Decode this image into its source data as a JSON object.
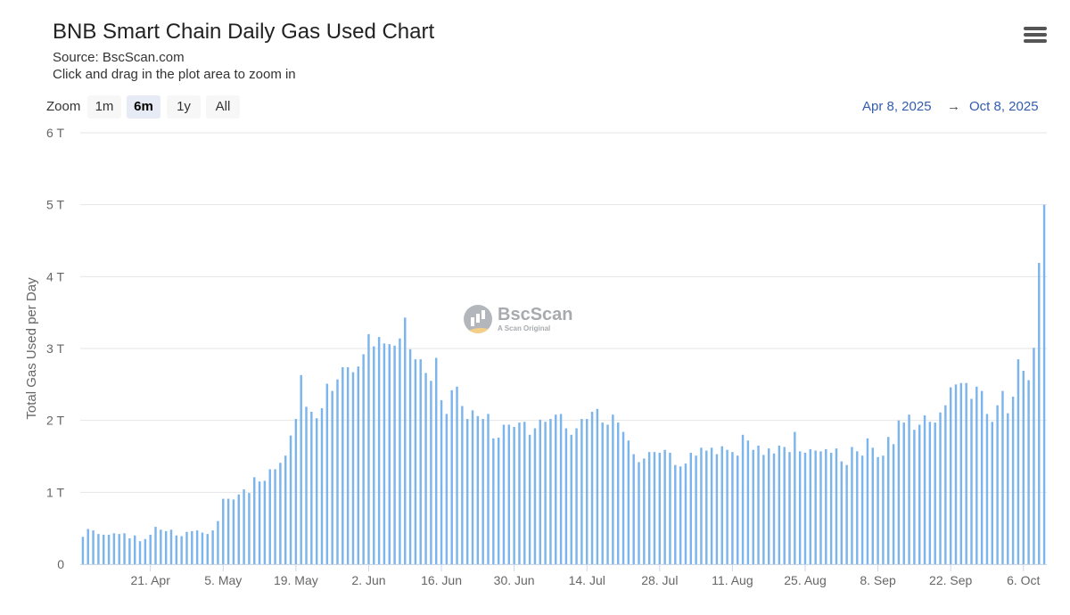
{
  "header": {
    "title": "BNB Smart Chain Daily Gas Used Chart",
    "source": "Source: BscScan.com",
    "hint": "Click and drag in the plot area to zoom in"
  },
  "zoom": {
    "label": "Zoom",
    "buttons": [
      "1m",
      "6m",
      "1y",
      "All"
    ],
    "active": "6m"
  },
  "range": {
    "from": "Apr 8, 2025",
    "arrow": "→",
    "to": "Oct 8, 2025"
  },
  "watermark": {
    "name": "BscScan",
    "tagline": "A Scan Original"
  },
  "colors": {
    "bar": "#7cb5ec",
    "grid": "#e6e6e6",
    "axis_text": "#666666",
    "range_text": "#335cad"
  },
  "chart_data": {
    "type": "bar",
    "start_date": "2025-04-08",
    "ylabel": "Total Gas Used per Day",
    "ylim": [
      0,
      6
    ],
    "yticks": [
      "0",
      "1 T",
      "2 T",
      "3 T",
      "4 T",
      "5 T",
      "6 T"
    ],
    "xticks": [
      {
        "label": "21. Apr",
        "day": 13
      },
      {
        "label": "5. May",
        "day": 27
      },
      {
        "label": "19. May",
        "day": 41
      },
      {
        "label": "2. Jun",
        "day": 55
      },
      {
        "label": "16. Jun",
        "day": 69
      },
      {
        "label": "30. Jun",
        "day": 83
      },
      {
        "label": "14. Jul",
        "day": 97
      },
      {
        "label": "28. Jul",
        "day": 111
      },
      {
        "label": "11. Aug",
        "day": 125
      },
      {
        "label": "25. Aug",
        "day": 139
      },
      {
        "label": "8. Sep",
        "day": 153
      },
      {
        "label": "22. Sep",
        "day": 167
      },
      {
        "label": "6. Oct",
        "day": 181
      }
    ],
    "series": [
      {
        "values": [
          0.38,
          0.49,
          0.47,
          0.42,
          0.41,
          0.41,
          0.43,
          0.42,
          0.43,
          0.36,
          0.4,
          0.32,
          0.35,
          0.41,
          0.52,
          0.48,
          0.46,
          0.48,
          0.4,
          0.39,
          0.45,
          0.46,
          0.47,
          0.44,
          0.42,
          0.47,
          0.6,
          0.91,
          0.91,
          0.9,
          0.97,
          1.04,
          0.99,
          1.21,
          1.15,
          1.16,
          1.32,
          1.32,
          1.41,
          1.51,
          1.79,
          2.02,
          2.63,
          2.19,
          2.12,
          2.03,
          2.17,
          2.51,
          2.41,
          2.57,
          2.74,
          2.74,
          2.67,
          2.75,
          2.92,
          3.2,
          3.03,
          3.16,
          3.07,
          3.06,
          3.04,
          3.14,
          3.43,
          2.99,
          2.85,
          2.85,
          2.66,
          2.55,
          2.87,
          2.28,
          2.09,
          2.42,
          2.47,
          2.2,
          2.02,
          2.14,
          2.06,
          2.02,
          2.09,
          1.75,
          1.76,
          1.94,
          1.94,
          1.91,
          1.97,
          1.98,
          1.8,
          1.89,
          2.01,
          1.98,
          2.02,
          2.08,
          2.09,
          1.89,
          1.8,
          1.89,
          2.02,
          2.02,
          2.12,
          2.16,
          1.97,
          1.94,
          2.08,
          1.97,
          1.84,
          1.72,
          1.53,
          1.42,
          1.47,
          1.56,
          1.56,
          1.55,
          1.59,
          1.55,
          1.38,
          1.36,
          1.4,
          1.55,
          1.51,
          1.62,
          1.58,
          1.62,
          1.53,
          1.64,
          1.59,
          1.56,
          1.51,
          1.8,
          1.72,
          1.59,
          1.65,
          1.52,
          1.61,
          1.54,
          1.65,
          1.63,
          1.56,
          1.84,
          1.57,
          1.55,
          1.6,
          1.58,
          1.57,
          1.6,
          1.55,
          1.61,
          1.43,
          1.38,
          1.63,
          1.57,
          1.51,
          1.75,
          1.62,
          1.49,
          1.51,
          1.77,
          1.67,
          2.0,
          1.97,
          2.08,
          1.87,
          1.94,
          2.07,
          1.98,
          1.97,
          2.11,
          2.21,
          2.46,
          2.5,
          2.52,
          2.52,
          2.3,
          2.47,
          2.41,
          2.09,
          1.98,
          2.21,
          2.41,
          2.1,
          2.33,
          2.85,
          2.69,
          2.56,
          3.01,
          4.19,
          5.0
        ]
      }
    ]
  }
}
